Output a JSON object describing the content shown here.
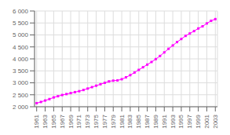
{
  "chart_data": {
    "type": "line",
    "x": [
      1961,
      1962,
      1963,
      1964,
      1965,
      1966,
      1967,
      1968,
      1969,
      1970,
      1971,
      1972,
      1973,
      1974,
      1975,
      1976,
      1977,
      1978,
      1979,
      1980,
      1981,
      1982,
      1983,
      1984,
      1985,
      1986,
      1987,
      1988,
      1989,
      1990,
      1991,
      1992,
      1993,
      1994,
      1995,
      1996,
      1997,
      1998,
      1999,
      2000,
      2001,
      2002,
      2003
    ],
    "values": [
      2150,
      2200,
      2260,
      2320,
      2390,
      2440,
      2490,
      2530,
      2570,
      2610,
      2650,
      2700,
      2760,
      2820,
      2880,
      2940,
      3000,
      3060,
      3090,
      3100,
      3150,
      3230,
      3320,
      3430,
      3540,
      3650,
      3760,
      3870,
      3990,
      4120,
      4270,
      4420,
      4560,
      4700,
      4830,
      4960,
      5060,
      5160,
      5270,
      5360,
      5480,
      5590,
      5660
    ],
    "color": "#FF00FF",
    "marker": "square",
    "xlim": [
      1960.5,
      2003.5
    ],
    "xticks": [
      1961,
      1963,
      1965,
      1967,
      1969,
      1971,
      1973,
      1975,
      1977,
      1979,
      1981,
      1983,
      1985,
      1987,
      1989,
      1991,
      1993,
      1995,
      1997,
      1999,
      2001,
      2003
    ],
    "ylim": [
      2000,
      6000
    ],
    "yticks": [
      {
        "value": 2000,
        "label": "2 000"
      },
      {
        "value": 2500,
        "label": "2 500"
      },
      {
        "value": 3000,
        "label": "3 000"
      },
      {
        "value": 3500,
        "label": "3 500"
      },
      {
        "value": 4000,
        "label": "4 000"
      },
      {
        "value": 4500,
        "label": "4 500"
      },
      {
        "value": 5000,
        "label": "5 000"
      },
      {
        "value": 5500,
        "label": "5 500"
      },
      {
        "value": 6000,
        "label": "6 000"
      }
    ],
    "grid": true
  }
}
